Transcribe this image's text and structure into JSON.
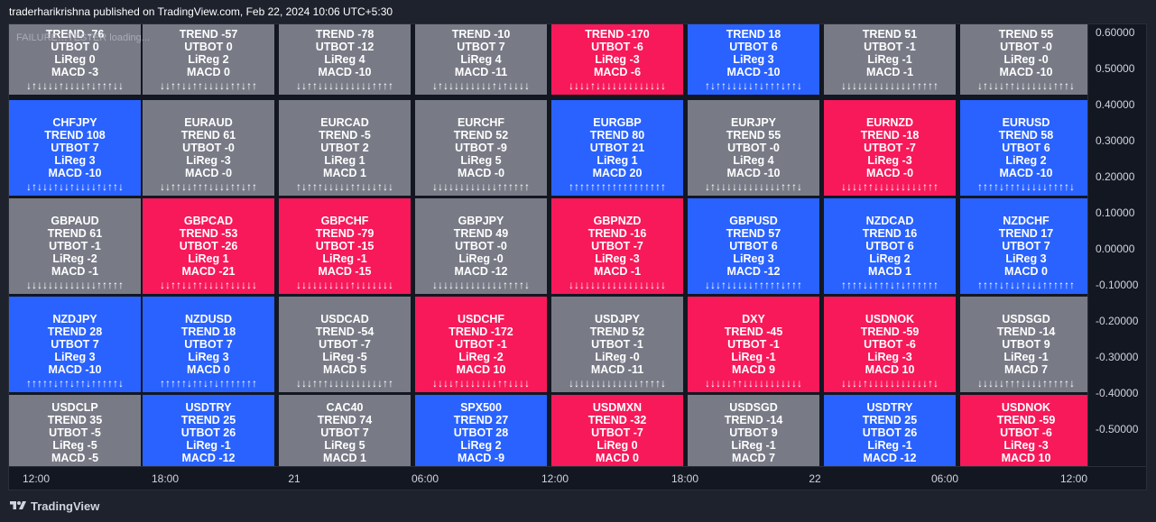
{
  "header": {
    "published_text": "traderharikrishna published on TradingView.com, Feb 22, 2024 10:06 UTC+5:30"
  },
  "loading_text": "FAILURE…TESTER loading...",
  "palette": {
    "gray": "#787b86",
    "blue": "#2962ff",
    "red": "#f7195a"
  },
  "rows": [
    [
      {
        "symbol": "",
        "trend": "TREND -76",
        "utbot": "UTBOT 0",
        "lireg": "LiReg 0",
        "macd": "MACD -3",
        "arrows": "↓↑↓↓↓↓↑↓↓↓↓↑↓↑↑↑↓↓",
        "color": "gray"
      },
      {
        "symbol": "",
        "trend": "TREND -57",
        "utbot": "UTBOT 0",
        "lireg": "LiReg 2",
        "macd": "MACD 0",
        "arrows": "↓↓↑↑↓↓↑↑↓↓↓↓↓↑↑↓↑↑",
        "color": "gray"
      },
      {
        "symbol": "",
        "trend": "TREND -78",
        "utbot": "UTBOT -12",
        "lireg": "LiReg 4",
        "macd": "MACD -10",
        "arrows": "↓↓↑↑↓↓↓↓↓↓↓↓↓↓↑↑↑↑",
        "color": "gray"
      },
      {
        "symbol": "",
        "trend": "TREND -10",
        "utbot": "UTBOT 7",
        "lireg": "LiReg 4",
        "macd": "MACD -11",
        "arrows": "↓↑↓↓↓↓↓↓↓↓↓↑↓↑↓↓↓↓",
        "color": "gray"
      },
      {
        "symbol": "",
        "trend": "TREND -170",
        "utbot": "UTBOT -6",
        "lireg": "LiReg -3",
        "macd": "MACD -6",
        "arrows": "↓↓↓↓↑↓↓↓↓↓↓↓↓↓↓↓↓↓",
        "color": "red"
      },
      {
        "symbol": "",
        "trend": "TREND 18",
        "utbot": "UTBOT 6",
        "lireg": "LiReg 3",
        "macd": "MACD -10",
        "arrows": "↑↓↑↑↓↓↓↓↓↑↓↑↑↑↓↑↑↓",
        "color": "blue"
      },
      {
        "symbol": "",
        "trend": "TREND 51",
        "utbot": "UTBOT -1",
        "lireg": "LiReg -1",
        "macd": "MACD -1",
        "arrows": "↓↓↓↓↓↓↓↓↓↓↓↓↓↑↑↑↑↑",
        "color": "gray"
      },
      {
        "symbol": "",
        "trend": "TREND 55",
        "utbot": "UTBOT -0",
        "lireg": "LiReg -0",
        "macd": "MACD -10",
        "arrows": "↓↑↓↓↓↑↑↓↓↓↓↓↓↓↑↑↑↓",
        "color": "gray"
      }
    ],
    [
      {
        "symbol": "CHFJPY",
        "trend": "TREND 108",
        "utbot": "UTBOT 7",
        "lireg": "LiReg 3",
        "macd": "MACD -10",
        "arrows": "↓↑↓↓↓↑↓↓↑↓↓↓↓↑↓↑↑↓",
        "color": "blue"
      },
      {
        "symbol": "EURAUD",
        "trend": "TREND 61",
        "utbot": "UTBOT -0",
        "lireg": "LiReg -3",
        "macd": "MACD -0",
        "arrows": "↓↓↑↑↓↓↑↑↑↓↓↓↓↑↑↓↑↑",
        "color": "gray"
      },
      {
        "symbol": "EURCAD",
        "trend": "TREND -5",
        "utbot": "UTBOT 2",
        "lireg": "LiReg 1",
        "macd": "MACD 1",
        "arrows": "↑↓↑↑↑↓↓↓↓↓↑↑↓↓↓↑↓↓",
        "color": "gray"
      },
      {
        "symbol": "EURCHF",
        "trend": "TREND 52",
        "utbot": "UTBOT -9",
        "lireg": "LiReg 5",
        "macd": "MACD -0",
        "arrows": "↓↓↓↓↓↓↓↓↓↓↓↓↑↑↑↑↑↑",
        "color": "gray"
      },
      {
        "symbol": "EURGBP",
        "trend": "TREND 80",
        "utbot": "UTBOT 21",
        "lireg": "LiReg 1",
        "macd": "MACD 20",
        "arrows": "↑↑↑↑↑↑↑↑↑↑↑↑↑↑↑↑↑↑",
        "color": "blue"
      },
      {
        "symbol": "EURJPY",
        "trend": "TREND 55",
        "utbot": "UTBOT -0",
        "lireg": "LiReg 4",
        "macd": "MACD -10",
        "arrows": "↓↑↓↓↓↓↓↓↓↓↓↓↓↓↑↑↑↓",
        "color": "gray"
      },
      {
        "symbol": "EURNZD",
        "trend": "TREND -18",
        "utbot": "UTBOT -7",
        "lireg": "LiReg -3",
        "macd": "MACD -0",
        "arrows": "↓↓↓↓↑↑↓↓↓↓↓↓↓↓↓↑↑↑",
        "color": "red"
      },
      {
        "symbol": "EURUSD",
        "trend": "TREND 58",
        "utbot": "UTBOT 6",
        "lireg": "LiReg 2",
        "macd": "MACD -10",
        "arrows": "↑↑↑↑↓↑↑↑↓↓↓↓↓↑↑↑↑↓",
        "color": "blue"
      }
    ],
    [
      {
        "symbol": "GBPAUD",
        "trend": "TREND 61",
        "utbot": "UTBOT -1",
        "lireg": "LiReg -2",
        "macd": "MACD -1",
        "arrows": "↓↓↓↓↓↓↓↓↓↓↓↓↓↑↑↑↑↑",
        "color": "gray"
      },
      {
        "symbol": "GBPCAD",
        "trend": "TREND -53",
        "utbot": "UTBOT -26",
        "lireg": "LiReg 1",
        "macd": "MACD -21",
        "arrows": "↓↓↑↑↓↓↑↑↓↓↓↓↑↓↓↓↓↓",
        "color": "red"
      },
      {
        "symbol": "GBPCHF",
        "trend": "TREND -79",
        "utbot": "UTBOT -15",
        "lireg": "LiReg -1",
        "macd": "MACD -15",
        "arrows": "↓↓↓↓↓↓↓↓↓↓↑↓↓↓↓↓↓↓",
        "color": "red"
      },
      {
        "symbol": "GBPJPY",
        "trend": "TREND 49",
        "utbot": "UTBOT -0",
        "lireg": "LiReg -0",
        "macd": "MACD -12",
        "arrows": "↓↓↓↓↓↓↓↓↓↓↓↓↓↑↑↑↑↓",
        "color": "gray"
      },
      {
        "symbol": "GBPNZD",
        "trend": "TREND -16",
        "utbot": "UTBOT -7",
        "lireg": "LiReg -3",
        "macd": "MACD -1",
        "arrows": "↓↓↓↓↓↓↓↓↓↓↓↓↓↓↓↓↓↓",
        "color": "red"
      },
      {
        "symbol": "GBPUSD",
        "trend": "TREND 57",
        "utbot": "UTBOT 6",
        "lireg": "LiReg 3",
        "macd": "MACD -12",
        "arrows": "↓↓↓↑↓↓↓↓↓↑↑↑↑↑↓↑↑↑",
        "color": "blue"
      },
      {
        "symbol": "NZDCAD",
        "trend": "TREND 16",
        "utbot": "UTBOT 6",
        "lireg": "LiReg 2",
        "macd": "MACD 1",
        "arrows": "↑↑↑↑↓↓↑↑↑↓↑↓↑↑↑↑↑↑",
        "color": "blue"
      },
      {
        "symbol": "NZDCHF",
        "trend": "TREND 17",
        "utbot": "UTBOT 7",
        "lireg": "LiReg 3",
        "macd": "MACD 0",
        "arrows": "↑↑↑↑↓↑↓↓↑↓↓↓↑↑↑↑↑↑",
        "color": "blue"
      }
    ],
    [
      {
        "symbol": "NZDJPY",
        "trend": "TREND 28",
        "utbot": "UTBOT 7",
        "lireg": "LiReg 3",
        "macd": "MACD -10",
        "arrows": "↑↑↑↑↑↓↑↑↓↑↑↓↑↑↑↑↑↓",
        "color": "blue"
      },
      {
        "symbol": "NZDUSD",
        "trend": "TREND 18",
        "utbot": "UTBOT 7",
        "lireg": "LiReg 3",
        "macd": "MACD 0",
        "arrows": "↑↑↑↑↑↓↑↑↓↑↓↑↑↑↑↑↑↑",
        "color": "blue"
      },
      {
        "symbol": "USDCAD",
        "trend": "TREND -54",
        "utbot": "UTBOT -7",
        "lireg": "LiReg -5",
        "macd": "MACD 5",
        "arrows": "↓↓↓↑↑↑↓↓↓↓↓↓↓↓↓↓↑↑",
        "color": "gray"
      },
      {
        "symbol": "USDCHF",
        "trend": "TREND -172",
        "utbot": "UTBOT -1",
        "lireg": "LiReg -2",
        "macd": "MACD 10",
        "arrows": "↓↓↓↓↑↓↓↓↓↓↓↓↑↑↓↓↓↓",
        "color": "red"
      },
      {
        "symbol": "USDJPY",
        "trend": "TREND 52",
        "utbot": "UTBOT -1",
        "lireg": "LiReg -0",
        "macd": "MACD -11",
        "arrows": "↓↓↓↓↓↓↓↓↓↓↓↓↓↑↑↑↑↓",
        "color": "gray"
      },
      {
        "symbol": "DXY",
        "trend": "TREND -45",
        "utbot": "UTBOT -1",
        "lireg": "LiReg -1",
        "macd": "MACD 9",
        "arrows": "↓↓↓↓↓↑↑↓↓↓↓↓↓↓↓↓↓↓",
        "color": "red"
      },
      {
        "symbol": "USDNOK",
        "trend": "TREND -59",
        "utbot": "UTBOT -6",
        "lireg": "LiReg -3",
        "macd": "MACD 10",
        "arrows": "↓↓↓↓↑↓↓↓↓↓↓↓↓↓↓↓↑↓",
        "color": "red"
      },
      {
        "symbol": "USDSGD",
        "trend": "TREND -14",
        "utbot": "UTBOT 9",
        "lireg": "LiReg -1",
        "macd": "MACD 7",
        "arrows": "↓↓↓↓↓↑↑↑↓↓↓↓↑↑↑↑↑↓",
        "color": "gray"
      }
    ],
    [
      {
        "symbol": "USDCLP",
        "trend": "TREND 35",
        "utbot": "UTBOT -5",
        "lireg": "LiReg -5",
        "macd": "MACD -5",
        "arrows": "",
        "color": "gray"
      },
      {
        "symbol": "USDTRY",
        "trend": "TREND 25",
        "utbot": "UTBOT 26",
        "lireg": "LiReg -1",
        "macd": "MACD -12",
        "arrows": "",
        "color": "blue"
      },
      {
        "symbol": "CAC40",
        "trend": "TREND 74",
        "utbot": "UTBOT 7",
        "lireg": "LiReg 5",
        "macd": "MACD 1",
        "arrows": "",
        "color": "gray"
      },
      {
        "symbol": "SPX500",
        "trend": "TREND 27",
        "utbot": "UTBOT 28",
        "lireg": "LiReg 2",
        "macd": "MACD -9",
        "arrows": "",
        "color": "blue"
      },
      {
        "symbol": "USDMXN",
        "trend": "TREND -32",
        "utbot": "UTBOT -7",
        "lireg": "LiReg 0",
        "macd": "MACD 0",
        "arrows": "",
        "color": "red"
      },
      {
        "symbol": "USDSGD",
        "trend": "TREND -14",
        "utbot": "UTBOT 9",
        "lireg": "LiReg -1",
        "macd": "MACD 7",
        "arrows": "",
        "color": "gray"
      },
      {
        "symbol": "USDTRY",
        "trend": "TREND 25",
        "utbot": "UTBOT 26",
        "lireg": "LiReg -1",
        "macd": "MACD -12",
        "arrows": "",
        "color": "blue"
      },
      {
        "symbol": "USDNOK",
        "trend": "TREND -59",
        "utbot": "UTBOT -6",
        "lireg": "LiReg -3",
        "macd": "MACD 10",
        "arrows": "",
        "color": "red"
      }
    ]
  ],
  "price_scale": [
    "0.60000",
    "0.50000",
    "0.40000",
    "0.30000",
    "0.20000",
    "0.10000",
    "0.00000",
    "-0.10000",
    "-0.20000",
    "-0.30000",
    "-0.40000",
    "-0.50000"
  ],
  "time_axis": [
    "12:00",
    "18:00",
    "21",
    "06:00",
    "12:00",
    "18:00",
    "22",
    "06:00",
    "12:00"
  ],
  "footer": {
    "brand": "TradingView"
  }
}
